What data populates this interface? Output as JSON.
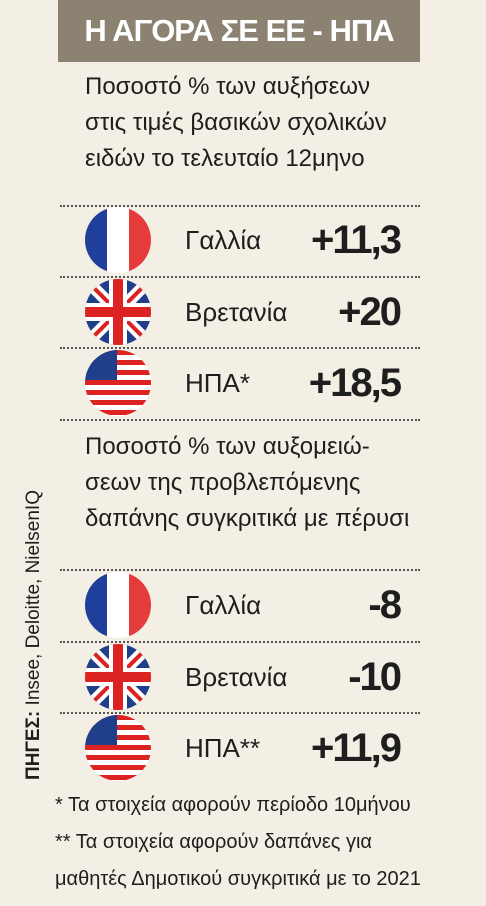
{
  "header": {
    "title": "Η ΑΓΟΡΑ ΣΕ ΕΕ - ΗΠΑ"
  },
  "sections": [
    {
      "description": [
        "Ποσοστό % των αυξήσεων",
        "στις τιμές βασικών σχολικών",
        "ειδών το τελευταίο 12μηνο"
      ],
      "rows": [
        {
          "country": "Γαλλία",
          "value": "+11,3"
        },
        {
          "country": "Βρετανία",
          "value": "+20"
        },
        {
          "country": "ΗΠΑ*",
          "value": "+18,5"
        }
      ]
    },
    {
      "description": [
        "Ποσοστό % των αυξομειώ-",
        "σεων της προβλεπόμενης",
        "δαπάνης συγκριτικά με πέρυσι"
      ],
      "rows": [
        {
          "country": "Γαλλία",
          "value": "-8"
        },
        {
          "country": "Βρετανία",
          "value": "-10"
        },
        {
          "country": "ΗΠΑ**",
          "value": "+11,9"
        }
      ]
    }
  ],
  "sources": {
    "label": "ΠΗΓΕΣ:",
    "text": "Insee, Deloitte, NielsenIQ"
  },
  "footnotes": [
    "* Τα στοιχεία αφορούν περίοδο 10μήνου",
    "** Τα στοιχεία αφορούν δαπάνες για",
    "μαθητές Δημοτικού συγκριτικά με το 2021"
  ]
}
